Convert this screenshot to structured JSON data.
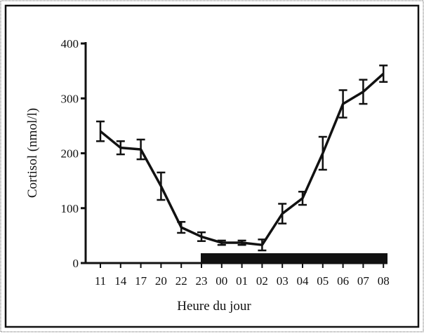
{
  "chart_data": {
    "type": "line",
    "categories": [
      "11",
      "14",
      "17",
      "20",
      "22",
      "23",
      "00",
      "01",
      "02",
      "03",
      "04",
      "05",
      "06",
      "07",
      "08"
    ],
    "values": [
      240,
      210,
      207,
      140,
      65,
      48,
      37,
      37,
      33,
      90,
      118,
      200,
      290,
      312,
      345
    ],
    "errors": [
      18,
      12,
      18,
      25,
      10,
      8,
      4,
      4,
      10,
      18,
      12,
      30,
      25,
      22,
      15
    ],
    "color": "#111111",
    "ylim": [
      0,
      400
    ],
    "yticks": [
      0,
      100,
      200,
      300,
      400
    ],
    "xlabel": "Heure du jour",
    "ylabel": "Cortisol (nmol/l)"
  }
}
